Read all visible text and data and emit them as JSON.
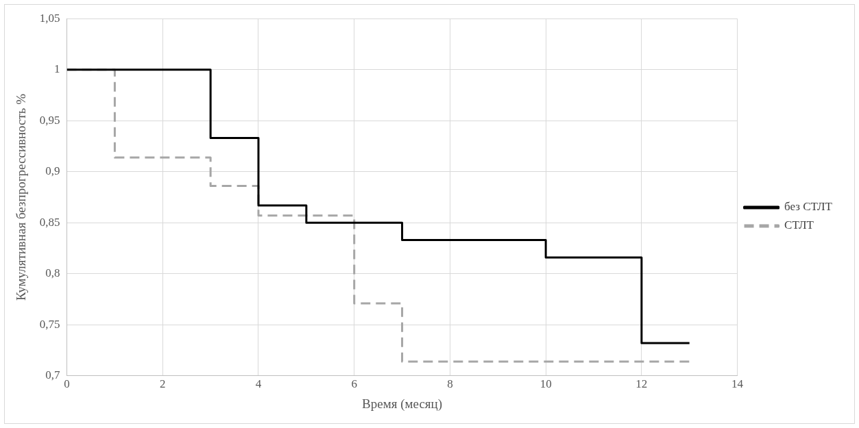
{
  "chart_data": {
    "type": "step",
    "xlabel": "Время (месяц)",
    "ylabel": "Кумулятивная безпрогрессивность %",
    "xlim": [
      0,
      14
    ],
    "xticks": [
      0,
      2,
      4,
      6,
      8,
      10,
      12,
      14
    ],
    "ylim": [
      0.7,
      1.05
    ],
    "yticks": [
      {
        "value": 0.7,
        "label": "0,7"
      },
      {
        "value": 0.75,
        "label": "0,75"
      },
      {
        "value": 0.8,
        "label": "0,8"
      },
      {
        "value": 0.85,
        "label": "0,85"
      },
      {
        "value": 0.9,
        "label": "0,9"
      },
      {
        "value": 0.95,
        "label": "0,95"
      },
      1,
      {
        "value": 1.05,
        "label": "1,05"
      }
    ],
    "grid": true,
    "legend": "right",
    "marker": "none",
    "series": [
      {
        "name": "без СТЛТ",
        "color": "#000000",
        "line_style": "solid",
        "x": [
          0,
          3,
          4,
          5,
          7,
          10,
          12,
          13
        ],
        "values": [
          1,
          0.933,
          0.867,
          0.85,
          0.833,
          0.816,
          0.732,
          0.732
        ]
      },
      {
        "name": "СТЛТ",
        "color": "#a6a6a6",
        "line_style": "dashed",
        "x": [
          0,
          1,
          3,
          4,
          6,
          7,
          13
        ],
        "values": [
          1,
          0.914,
          0.886,
          0.857,
          0.771,
          0.714,
          0.714
        ]
      }
    ]
  }
}
